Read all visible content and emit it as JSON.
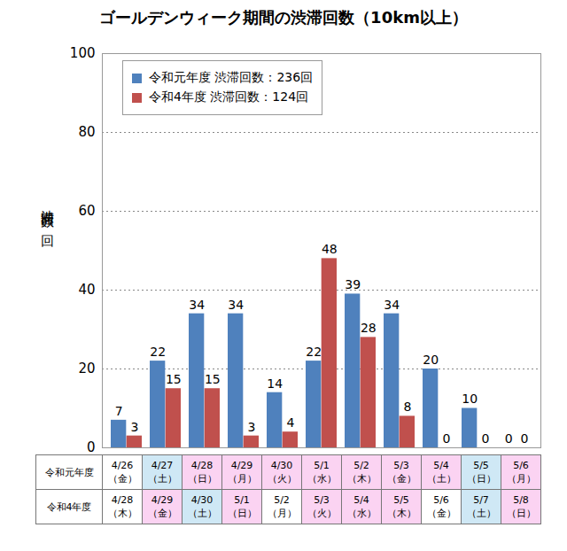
{
  "chart_data": {
    "type": "bar",
    "title": "ゴールデンウィーク期間の渋滞回数（10km以上）",
    "ylabel": "渋滞回数 回",
    "categories": [
      "4/26（金）",
      "4/27（土）",
      "4/28（日）",
      "4/29（月）",
      "4/30（火）",
      "5/1（水）",
      "5/2（木）",
      "5/3（金）",
      "5/4（土）",
      "5/5（日）",
      "5/6（月）"
    ],
    "series": [
      {
        "name": "令和元年度 渋滞回数：236回",
        "row_label": "令和元年度",
        "color": "#4f81bd",
        "values": [
          7,
          22,
          34,
          34,
          14,
          22,
          39,
          34,
          20,
          10,
          0
        ],
        "cell_colors": [
          "#ffffff",
          "#cfe8f5",
          "#fbd3f2",
          "#fbd3f2",
          "#fbd3f2",
          "#fbd3f2",
          "#fbd3f2",
          "#fbd3f2",
          "#fbd3f2",
          "#cfe8f5",
          "#fbd3f2"
        ]
      },
      {
        "name": "令和4年度 渋滞回数：124回",
        "row_label": "令和4年度",
        "color": "#c0504d",
        "dates": [
          "4/28（木）",
          "4/29（金）",
          "4/30（土）",
          "5/1（日）",
          "5/2（月）",
          "5/3（火）",
          "5/4（水）",
          "5/5（木）",
          "5/6（金）",
          "5/7（土）",
          "5/8（日）"
        ],
        "values": [
          3,
          15,
          15,
          3,
          4,
          48,
          28,
          8,
          0,
          0,
          0
        ],
        "cell_colors": [
          "#ffffff",
          "#fbd3f2",
          "#cfe8f5",
          "#fbd3f2",
          "#ffffff",
          "#fbd3f2",
          "#fbd3f2",
          "#fbd3f2",
          "#ffffff",
          "#cfe8f5",
          "#fbd3f2"
        ]
      }
    ],
    "ylim": [
      0,
      100
    ],
    "yticks": [
      0,
      20,
      40,
      60,
      80,
      100
    ],
    "grid": true,
    "legend": "top-left",
    "data_labels": true
  }
}
